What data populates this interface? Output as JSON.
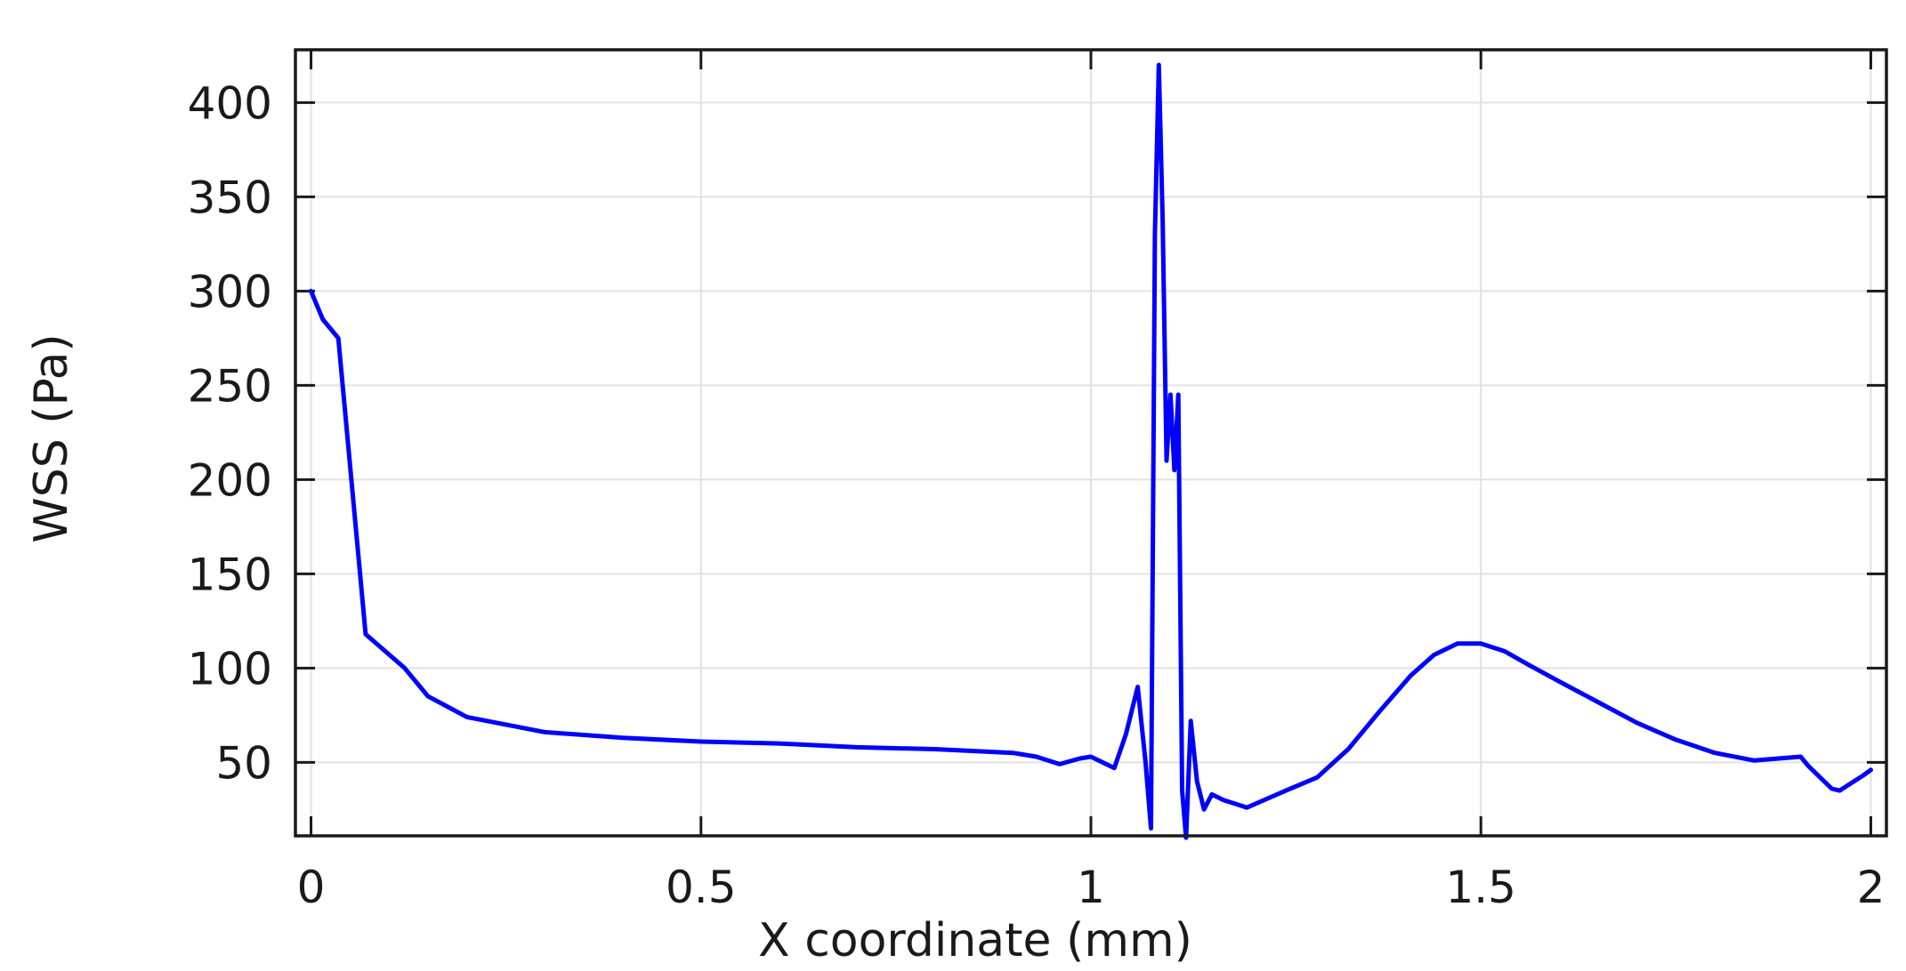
{
  "chart_data": {
    "type": "line",
    "title": "",
    "xlabel": "X coordinate (mm)",
    "ylabel": "WSS (Pa)",
    "xlim": [
      -0.02,
      2.02
    ],
    "ylim": [
      11,
      428
    ],
    "xticks": [
      0,
      0.5,
      1,
      1.5,
      2
    ],
    "xtick_labels": [
      "0",
      "0.5",
      "1",
      "1.5",
      "2"
    ],
    "yticks": [
      50,
      100,
      150,
      200,
      250,
      300,
      350,
      400
    ],
    "ytick_labels": [
      "50",
      "100",
      "150",
      "200",
      "250",
      "300",
      "350",
      "400"
    ],
    "grid": true,
    "legend": "none",
    "series_color": "#0000ff",
    "series": [
      {
        "x": [
          0,
          0.015,
          0.035,
          0.07,
          0.12,
          0.15,
          0.2,
          0.3,
          0.4,
          0.5,
          0.6,
          0.7,
          0.8,
          0.9,
          0.93,
          0.96,
          0.985,
          1.0,
          1.03,
          1.045,
          1.06,
          1.07,
          1.077,
          1.082,
          1.087,
          1.092,
          1.097,
          1.102,
          1.107,
          1.112,
          1.117,
          1.122,
          1.128,
          1.136,
          1.145,
          1.155,
          1.17,
          1.2,
          1.25,
          1.29,
          1.33,
          1.37,
          1.41,
          1.44,
          1.47,
          1.5,
          1.53,
          1.56,
          1.6,
          1.65,
          1.7,
          1.75,
          1.8,
          1.85,
          1.88,
          1.91,
          1.92,
          1.95,
          1.96,
          1.99,
          2.0
        ],
        "y": [
          300,
          285,
          275,
          118,
          100,
          85,
          74,
          66,
          63,
          61,
          60,
          58,
          57,
          55,
          53,
          49,
          52,
          53,
          47,
          65,
          90,
          50,
          15,
          330,
          420,
          338,
          210,
          245,
          205,
          245,
          35,
          10,
          72,
          40,
          25,
          33,
          30,
          26,
          35,
          42,
          57,
          77,
          96,
          107,
          113,
          113,
          109,
          102,
          93,
          82,
          71,
          62,
          55,
          51,
          52,
          53,
          48,
          36,
          35,
          43,
          46
        ]
      }
    ]
  }
}
